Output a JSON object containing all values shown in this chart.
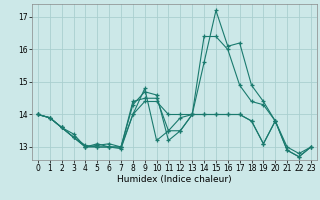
{
  "xlabel": "Humidex (Indice chaleur)",
  "background_color": "#cce8e8",
  "grid_color": "#aacfcf",
  "line_color": "#1a7a6e",
  "xlim": [
    -0.5,
    23.5
  ],
  "ylim": [
    12.6,
    17.4
  ],
  "yticks": [
    13,
    14,
    15,
    16,
    17
  ],
  "xticks": [
    0,
    1,
    2,
    3,
    4,
    5,
    6,
    7,
    8,
    9,
    10,
    11,
    12,
    13,
    14,
    15,
    16,
    17,
    18,
    19,
    20,
    21,
    22,
    23
  ],
  "series": [
    [
      [
        0,
        14.0
      ],
      [
        1,
        13.9
      ],
      [
        2,
        13.6
      ],
      [
        3,
        13.3
      ],
      [
        4,
        13.0
      ],
      [
        5,
        13.1
      ],
      [
        6,
        13.0
      ],
      [
        7,
        13.0
      ],
      [
        8,
        14.3
      ],
      [
        9,
        14.7
      ],
      [
        10,
        14.6
      ],
      [
        11,
        13.2
      ],
      [
        12,
        13.5
      ],
      [
        13,
        14.0
      ],
      [
        14,
        15.6
      ],
      [
        15,
        17.2
      ],
      [
        16,
        16.1
      ],
      [
        17,
        16.2
      ],
      [
        18,
        14.9
      ],
      [
        19,
        14.4
      ],
      [
        20,
        13.8
      ],
      [
        21,
        12.9
      ],
      [
        22,
        12.7
      ],
      [
        23,
        13.0
      ]
    ],
    [
      [
        0,
        14.0
      ],
      [
        1,
        13.9
      ],
      [
        2,
        13.6
      ],
      [
        3,
        13.4
      ],
      [
        4,
        13.0
      ],
      [
        5,
        13.05
      ],
      [
        6,
        13.1
      ],
      [
        7,
        13.0
      ],
      [
        8,
        14.4
      ],
      [
        9,
        14.5
      ],
      [
        10,
        14.5
      ],
      [
        11,
        13.5
      ],
      [
        12,
        13.9
      ],
      [
        13,
        14.0
      ],
      [
        14,
        14.0
      ],
      [
        15,
        14.0
      ],
      [
        16,
        14.0
      ],
      [
        17,
        14.0
      ],
      [
        18,
        13.8
      ],
      [
        19,
        13.1
      ],
      [
        20,
        13.8
      ]
    ],
    [
      [
        0,
        14.0
      ],
      [
        1,
        13.9
      ],
      [
        2,
        13.6
      ],
      [
        3,
        13.3
      ],
      [
        4,
        13.05
      ],
      [
        5,
        13.0
      ],
      [
        6,
        13.0
      ],
      [
        7,
        12.95
      ],
      [
        8,
        14.0
      ],
      [
        9,
        14.8
      ],
      [
        10,
        13.2
      ],
      [
        11,
        13.5
      ],
      [
        12,
        13.5
      ],
      [
        13,
        14.0
      ],
      [
        14,
        16.4
      ],
      [
        15,
        16.4
      ],
      [
        16,
        16.0
      ],
      [
        17,
        14.9
      ],
      [
        18,
        14.4
      ],
      [
        19,
        14.3
      ],
      [
        20,
        13.8
      ],
      [
        21,
        12.9
      ],
      [
        22,
        12.7
      ],
      [
        23,
        13.0
      ]
    ],
    [
      [
        0,
        14.0
      ],
      [
        1,
        13.9
      ],
      [
        2,
        13.6
      ],
      [
        3,
        13.3
      ],
      [
        4,
        13.0
      ],
      [
        5,
        13.0
      ],
      [
        6,
        13.0
      ],
      [
        7,
        13.0
      ],
      [
        8,
        14.0
      ],
      [
        9,
        14.4
      ],
      [
        10,
        14.4
      ],
      [
        11,
        14.0
      ],
      [
        12,
        14.0
      ],
      [
        13,
        14.0
      ],
      [
        14,
        14.0
      ],
      [
        15,
        14.0
      ],
      [
        16,
        14.0
      ],
      [
        17,
        14.0
      ],
      [
        18,
        13.8
      ],
      [
        19,
        13.1
      ],
      [
        20,
        13.8
      ],
      [
        21,
        13.0
      ],
      [
        22,
        12.8
      ],
      [
        23,
        13.0
      ]
    ]
  ]
}
